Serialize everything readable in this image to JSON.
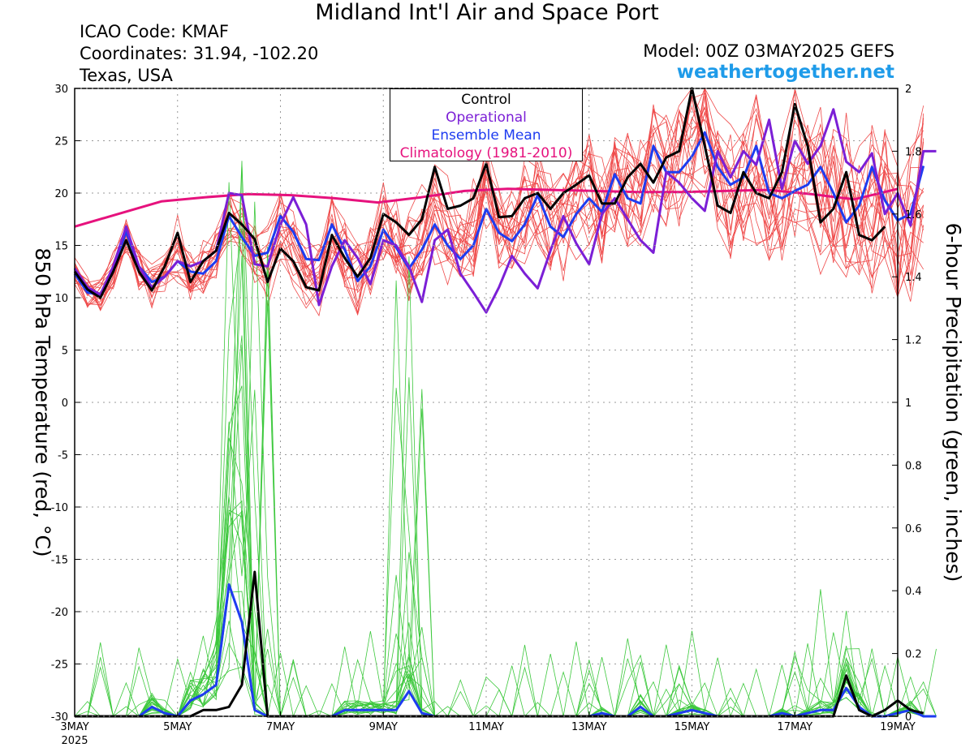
{
  "header": {
    "title": "Midland Int'l Air and Space Port",
    "icao": "ICAO Code: KMAF",
    "coords": "Coordinates: 31.94, -102.20",
    "region": "Texas, USA",
    "model": "Model: 00Z 03MAY2025 GEFS",
    "site": "weathertogether.net"
  },
  "legend": [
    {
      "label": "Control",
      "color": "#000000"
    },
    {
      "label": "Operational",
      "color": "#7b1fd6"
    },
    {
      "label": "Ensemble Mean",
      "color": "#1e3cf0"
    },
    {
      "label": "Climatology (1981-2010)",
      "color": "#e6127d"
    }
  ],
  "chart_data": {
    "type": "line",
    "x_start": "2025-05-03 00Z",
    "x_end": "2025-05-19 00Z",
    "x_step": "6 hours",
    "xticks": [
      "3MAY",
      "5MAY",
      "7MAY",
      "9MAY",
      "11MAY",
      "13MAY",
      "15MAY",
      "17MAY",
      "19MAY"
    ],
    "xtick_year": "2025",
    "ylabel_left": "850 hPa Temperature (red, °C)",
    "ylabel_right": "6-hour Precipitation (green, inches)",
    "ylim_left": [
      -30,
      30
    ],
    "ylim_right": [
      0,
      2
    ],
    "yticks_left": [
      "30",
      "25",
      "20",
      "15",
      "10",
      "5",
      "0",
      "-5",
      "-10",
      "-15",
      "-20",
      "-25",
      "-30"
    ],
    "yticks_right": [
      "2",
      "1.8",
      "1.6",
      "1.4",
      "1.2",
      "1",
      "0.8",
      "0.6",
      "0.4",
      "0.2",
      "0"
    ],
    "colors": {
      "members_temp": "#ef4a4a",
      "members_precip": "#3cc83c"
    },
    "series": [
      {
        "name": "Control",
        "axis": "left",
        "color": "#000000",
        "values": [
          12.5,
          10.8,
          10.0,
          12.5,
          15.5,
          12.5,
          10.7,
          13.0,
          16.2,
          11.5,
          13.5,
          14.5,
          18.1,
          17.0,
          15.6,
          11.5,
          14.7,
          13.5,
          11.0,
          10.7,
          16.0,
          13.8,
          12.0,
          13.8,
          18.0,
          17.2,
          16.0,
          17.5,
          22.5,
          18.5,
          18.8,
          19.5,
          22.8,
          17.7,
          17.8,
          19.5,
          20.0,
          18.5,
          20.0,
          20.8,
          21.7,
          19.0,
          19.0,
          21.5,
          22.8,
          21.0,
          23.4,
          24.0,
          30.0,
          24.5,
          18.8,
          18.1,
          22.0,
          20.0,
          19.5,
          22.0,
          28.5,
          24.5,
          17.2,
          18.5,
          22.0,
          16.0,
          15.5,
          16.8
        ]
      },
      {
        "name": "Operational",
        "axis": "left",
        "color": "#7b1fd6",
        "values": [
          12.8,
          11.0,
          10.3,
          13.0,
          16.8,
          13.0,
          11.0,
          12.0,
          13.5,
          13.0,
          13.5,
          14.5,
          20.0,
          19.8,
          13.2,
          13.0,
          17.0,
          19.6,
          17.0,
          9.3,
          13.0,
          15.5,
          13.8,
          11.3,
          15.5,
          15.0,
          13.0,
          9.6,
          15.5,
          16.5,
          12.3,
          10.5,
          8.6,
          11.0,
          14.0,
          12.3,
          10.9,
          14.5,
          17.8,
          15.2,
          13.2,
          18.0,
          19.5,
          17.5,
          15.5,
          14.3,
          22.0,
          21.0,
          19.5,
          18.3,
          24.0,
          21.5,
          24.0,
          22.7,
          27.0,
          20.4,
          25.0,
          22.8,
          24.5,
          28.0,
          23.0,
          22.0,
          23.8,
          18.0,
          20.0,
          16.9,
          24.0,
          24.0
        ]
      },
      {
        "name": "Ensemble Mean",
        "axis": "left",
        "color": "#1e3cf0",
        "values": [
          12.3,
          10.5,
          10.3,
          12.8,
          16.3,
          13.0,
          11.5,
          12.0,
          13.5,
          12.5,
          12.3,
          13.5,
          17.8,
          15.8,
          14.0,
          14.3,
          17.8,
          16.3,
          13.7,
          13.6,
          17.0,
          14.6,
          11.6,
          13.0,
          16.5,
          14.8,
          12.8,
          14.6,
          17.0,
          15.0,
          13.7,
          15.0,
          18.5,
          16.2,
          15.4,
          17.0,
          19.8,
          16.8,
          15.8,
          18.0,
          19.5,
          18.2,
          21.8,
          19.5,
          19.0,
          24.5,
          22.0,
          22.0,
          23.5,
          25.8,
          22.5,
          20.8,
          21.5,
          24.5,
          20.0,
          19.5,
          20.2,
          20.8,
          22.5,
          20.0,
          17.2,
          18.8,
          22.5,
          19.3,
          17.4,
          18.0,
          22.6
        ]
      },
      {
        "name": "Climatology (1981-2010)",
        "axis": "left",
        "color": "#e6127d",
        "values": [
          16.8,
          18.0,
          19.2,
          19.6,
          19.9,
          19.8,
          19.5,
          19.1,
          19.6,
          20.2,
          20.4,
          20.3,
          20.2,
          20.1,
          20.1,
          20.2,
          20.3,
          19.9,
          19.4,
          20.4
        ]
      },
      {
        "name": "Control",
        "axis": "right",
        "color": "#000000",
        "values": [
          0,
          0,
          0,
          0,
          0,
          0,
          0,
          0,
          0,
          0,
          0.02,
          0.02,
          0.03,
          0.1,
          0.46,
          0,
          0,
          0,
          0,
          0,
          0,
          0,
          0,
          0,
          0,
          0,
          0,
          0,
          0,
          0,
          0,
          0,
          0,
          0,
          0,
          0,
          0,
          0,
          0,
          0,
          0,
          0,
          0,
          0,
          0,
          0,
          0,
          0,
          0,
          0,
          0,
          0,
          0,
          0,
          0,
          0,
          0,
          0,
          0,
          0,
          0.13,
          0.02,
          0,
          0.02,
          0.05,
          0.02,
          0.01
        ]
      },
      {
        "name": "Ensemble Mean",
        "axis": "right",
        "color": "#1e3cf0",
        "values": [
          0,
          0,
          0,
          0,
          0,
          0,
          0.03,
          0.01,
          0,
          0.05,
          0.07,
          0.1,
          0.42,
          0.3,
          0.02,
          0,
          0,
          0,
          0,
          0,
          0,
          0.02,
          0.02,
          0.02,
          0.02,
          0.02,
          0.08,
          0.01,
          0,
          0,
          0,
          0,
          0,
          0,
          0,
          0,
          0,
          0,
          0,
          0,
          0,
          0.01,
          0,
          0,
          0.03,
          0,
          0,
          0.01,
          0.02,
          0.01,
          0,
          0,
          0,
          0,
          0,
          0.01,
          0,
          0.01,
          0.02,
          0.02,
          0.09,
          0.03,
          0,
          0,
          0.01,
          0.02,
          0,
          0
        ]
      }
    ]
  }
}
